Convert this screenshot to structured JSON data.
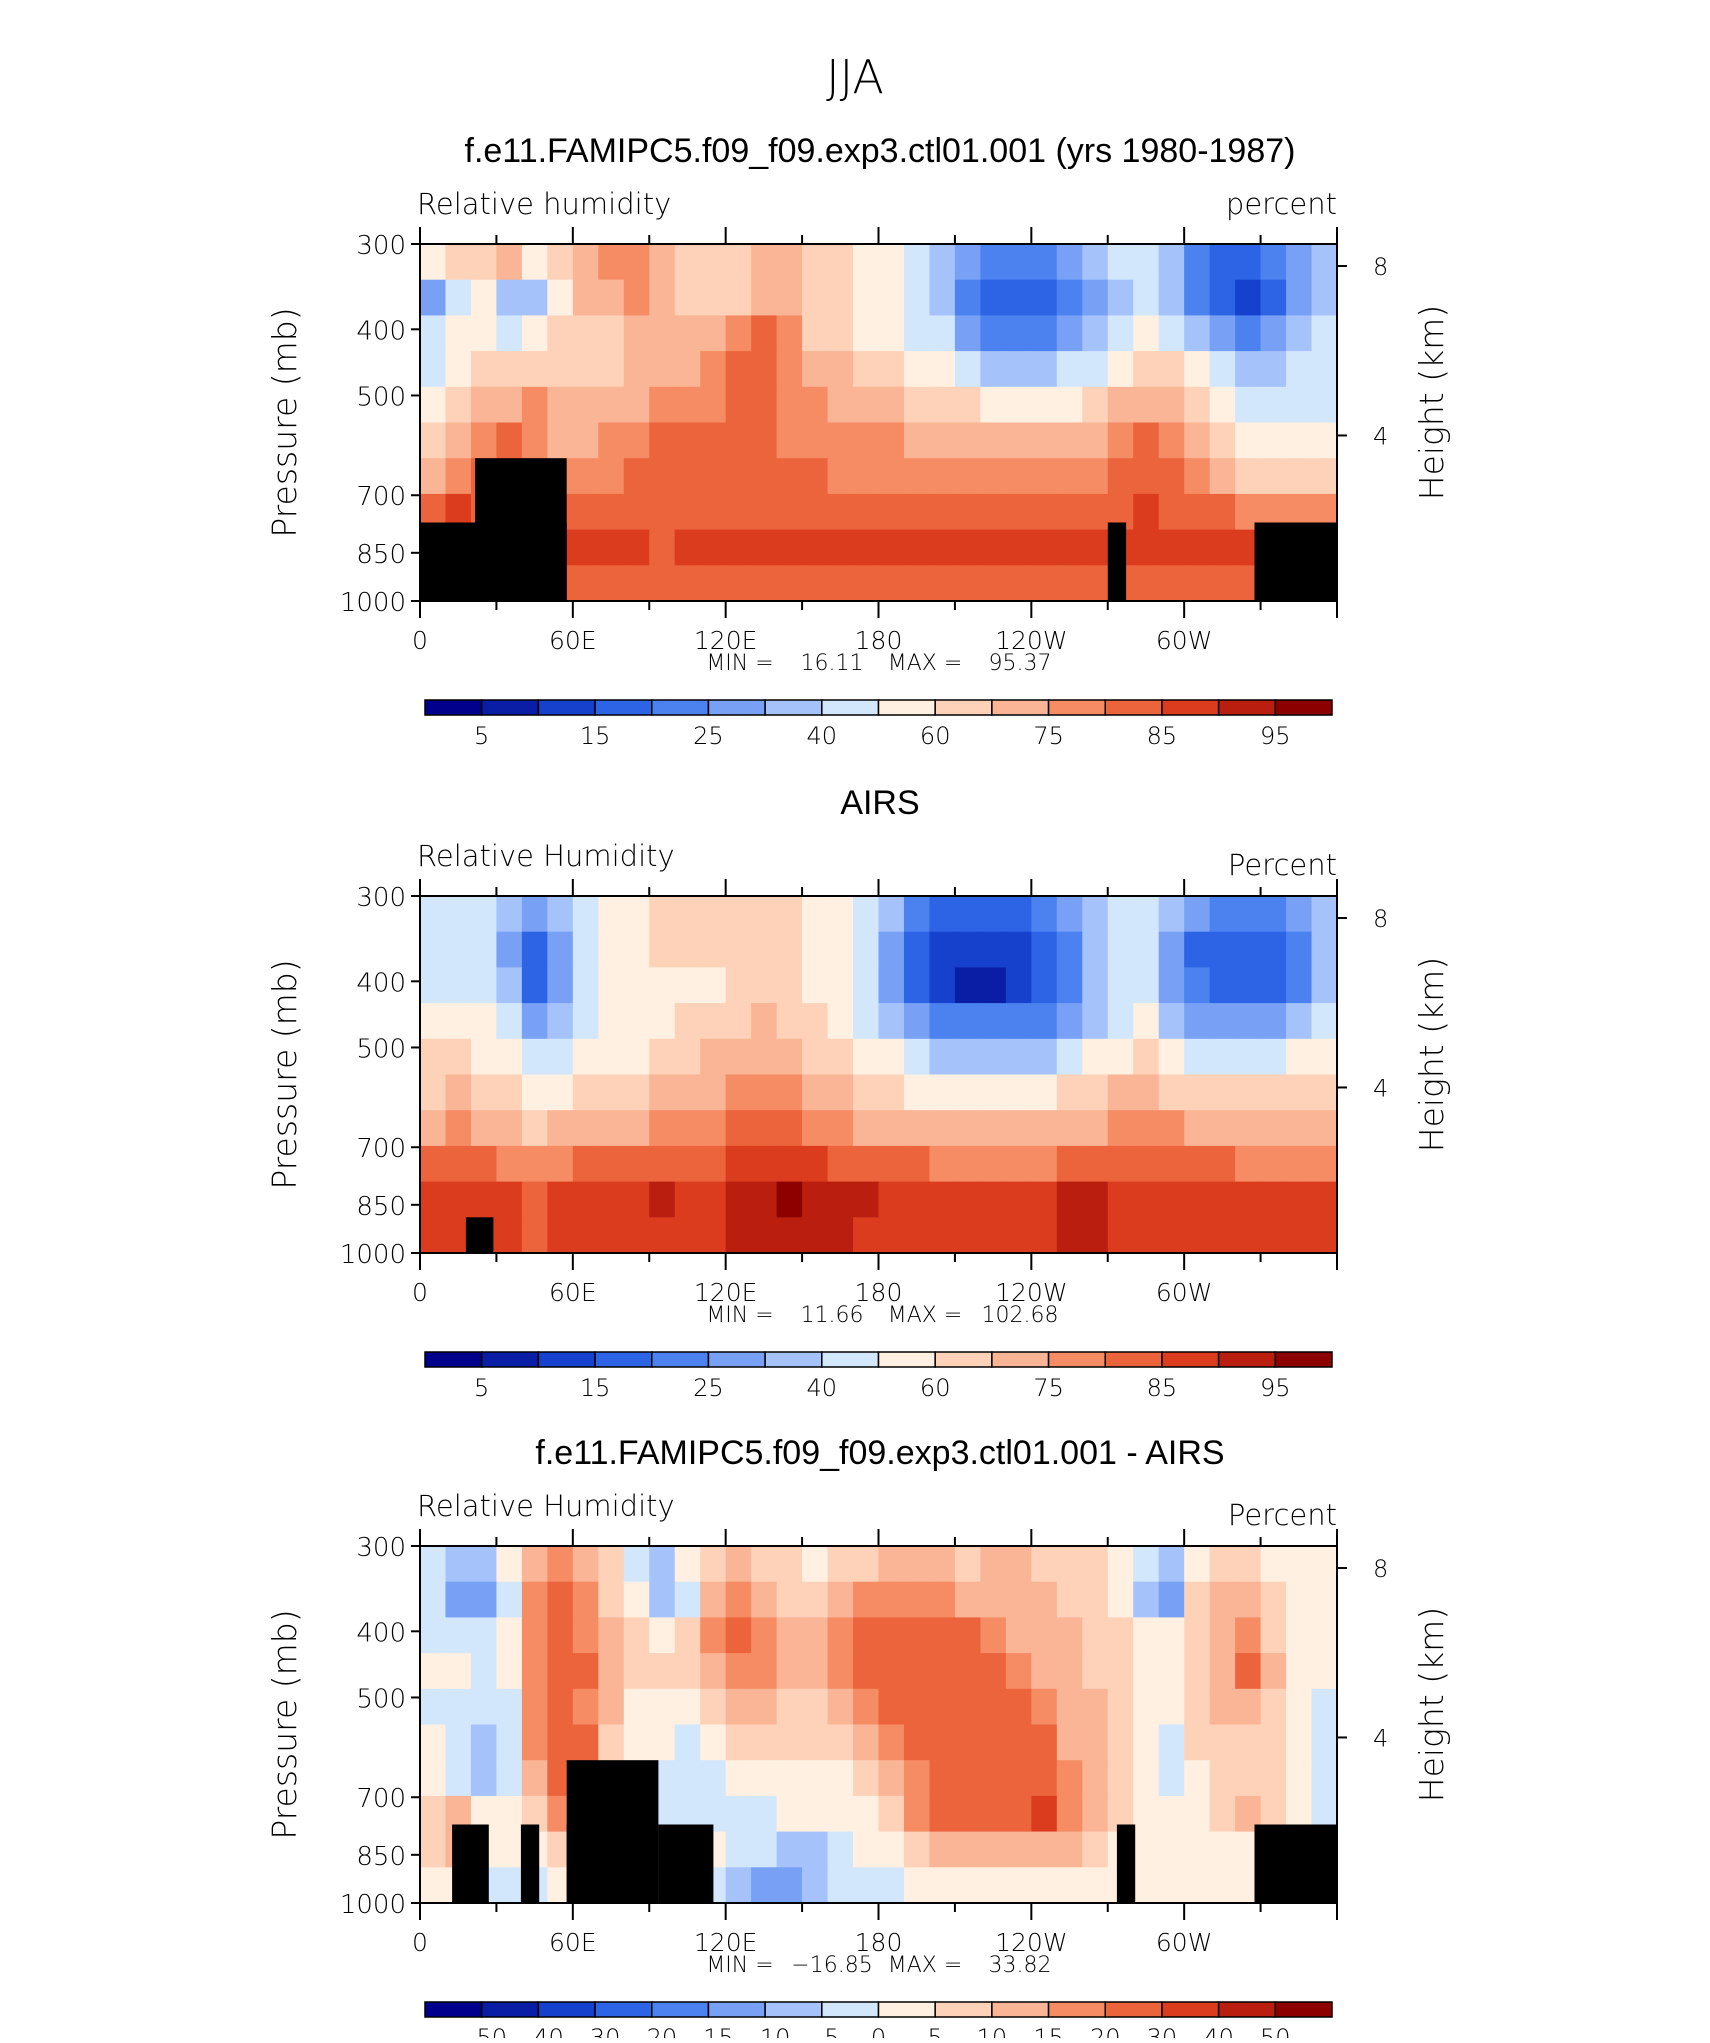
{
  "figure": {
    "suptitle": "JJA"
  },
  "chart_data": [
    {
      "type": "heatmap",
      "title": "f.e11.FAMIPC5.f09_f09.exp3.ctl01.001 (yrs 1980-1987)",
      "left_label": "Relative humidity",
      "right_label": "percent",
      "ylabel": "Pressure (mb)",
      "ylabel_right": "Height (km)",
      "y_ticks": [
        "300",
        "400",
        "500",
        "700",
        "850",
        "1000"
      ],
      "y_right_ticks": [
        "8",
        "4"
      ],
      "x_ticks": [
        "0",
        "60E",
        "120E",
        "180",
        "120W",
        "60W"
      ],
      "stats": {
        "min_label": "MIN =",
        "min": "16.11",
        "max_label": "MAX =",
        "max": "95.37"
      },
      "colorbar_labels": [
        "5",
        "15",
        "25",
        "40",
        "60",
        "75",
        "85",
        "95"
      ],
      "colors": [
        "#00008c",
        "#0a1ea5",
        "#1641cd",
        "#2d64e6",
        "#4b82f0",
        "#78a0f5",
        "#a5c3fa",
        "#d2e6fc",
        "#fff0e1",
        "#fdd2b9",
        "#fab496",
        "#f58c64",
        "#eb643c",
        "#dc3c1e",
        "#b91e0f",
        "#8c0000"
      ],
      "field": [
        [
          8,
          9,
          9,
          10,
          8,
          9,
          10,
          11,
          11,
          10,
          9,
          9,
          9,
          10,
          10,
          9,
          9,
          8,
          8,
          7,
          6,
          5,
          4,
          4,
          4,
          5,
          6,
          7,
          7,
          6,
          4,
          3,
          3,
          4,
          5,
          6
        ],
        [
          5,
          7,
          8,
          6,
          6,
          8,
          10,
          10,
          11,
          10,
          9,
          9,
          9,
          10,
          10,
          9,
          9,
          8,
          8,
          7,
          6,
          4,
          3,
          3,
          3,
          4,
          5,
          6,
          7,
          6,
          4,
          3,
          2,
          3,
          5,
          6
        ],
        [
          7,
          8,
          8,
          7,
          8,
          9,
          9,
          9,
          10,
          10,
          10,
          10,
          11,
          12,
          11,
          9,
          9,
          8,
          8,
          7,
          7,
          5,
          4,
          4,
          4,
          5,
          6,
          7,
          8,
          7,
          6,
          5,
          4,
          5,
          6,
          7
        ],
        [
          7,
          8,
          9,
          9,
          9,
          9,
          9,
          9,
          10,
          10,
          10,
          11,
          12,
          12,
          11,
          10,
          10,
          9,
          9,
          8,
          8,
          7,
          6,
          6,
          6,
          7,
          7,
          8,
          9,
          9,
          8,
          7,
          6,
          6,
          7,
          7
        ],
        [
          8,
          9,
          10,
          10,
          11,
          10,
          10,
          10,
          10,
          11,
          11,
          11,
          12,
          12,
          11,
          11,
          10,
          10,
          10,
          9,
          9,
          9,
          8,
          8,
          8,
          8,
          9,
          10,
          10,
          10,
          9,
          8,
          7,
          7,
          7,
          7
        ],
        [
          9,
          10,
          11,
          12,
          11,
          10,
          10,
          11,
          11,
          12,
          12,
          12,
          12,
          12,
          11,
          11,
          11,
          11,
          11,
          10,
          10,
          10,
          10,
          10,
          10,
          10,
          10,
          11,
          12,
          11,
          10,
          9,
          8,
          8,
          8,
          8
        ],
        [
          10,
          11,
          12,
          13,
          12,
          11,
          11,
          11,
          12,
          12,
          12,
          12,
          12,
          12,
          12,
          12,
          11,
          11,
          11,
          11,
          11,
          11,
          11,
          11,
          11,
          11,
          11,
          12,
          12,
          12,
          11,
          10,
          9,
          9,
          9,
          9
        ],
        [
          12,
          13,
          12,
          13,
          12,
          12,
          12,
          12,
          12,
          12,
          12,
          12,
          12,
          12,
          12,
          12,
          12,
          12,
          12,
          12,
          12,
          12,
          12,
          12,
          12,
          12,
          12,
          12,
          13,
          12,
          12,
          12,
          11,
          11,
          11,
          11
        ],
        [
          13,
          13,
          13,
          13,
          13,
          13,
          13,
          13,
          13,
          12,
          13,
          13,
          13,
          13,
          13,
          13,
          13,
          13,
          13,
          13,
          13,
          13,
          13,
          13,
          13,
          13,
          13,
          13,
          13,
          13,
          13,
          13,
          13,
          13,
          13,
          13
        ],
        [
          12,
          12,
          12,
          12,
          12,
          12,
          12,
          12,
          12,
          12,
          12,
          12,
          12,
          12,
          12,
          12,
          12,
          12,
          12,
          12,
          12,
          12,
          12,
          12,
          12,
          12,
          12,
          12,
          12,
          12,
          12,
          12,
          12,
          12,
          12,
          12
        ]
      ],
      "terrain": [
        [
          0,
          0.6,
          0.78
        ],
        [
          0.6,
          0.4,
          0.78
        ],
        [
          0.6,
          1,
          0.6
        ],
        [
          1,
          0.6,
          0.78
        ],
        [
          1.1,
          0.35,
          0.78
        ],
        [
          7.5,
          0.2,
          0.78
        ],
        [
          9.1,
          0.9,
          0.78
        ]
      ]
    },
    {
      "type": "heatmap",
      "title": "AIRS",
      "left_label": "Relative Humidity",
      "right_label": "Percent",
      "ylabel": "Pressure (mb)",
      "ylabel_right": "Height (km)",
      "y_ticks": [
        "300",
        "400",
        "500",
        "700",
        "850",
        "1000"
      ],
      "y_right_ticks": [
        "8",
        "4"
      ],
      "x_ticks": [
        "0",
        "60E",
        "120E",
        "180",
        "120W",
        "60W"
      ],
      "stats": {
        "min_label": "MIN =",
        "min": "11.66",
        "max_label": "MAX =",
        "max": "102.68"
      },
      "colorbar_labels": [
        "5",
        "15",
        "25",
        "40",
        "60",
        "75",
        "85",
        "95"
      ],
      "colors": [
        "#00008c",
        "#0a1ea5",
        "#1641cd",
        "#2d64e6",
        "#4b82f0",
        "#78a0f5",
        "#a5c3fa",
        "#d2e6fc",
        "#fff0e1",
        "#fdd2b9",
        "#fab496",
        "#f58c64",
        "#eb643c",
        "#dc3c1e",
        "#b91e0f",
        "#8c0000"
      ],
      "field": [
        [
          7,
          7,
          7,
          6,
          5,
          6,
          7,
          8,
          8,
          9,
          9,
          9,
          9,
          9,
          9,
          8,
          8,
          7,
          6,
          4,
          3,
          3,
          3,
          3,
          4,
          5,
          6,
          7,
          7,
          6,
          5,
          4,
          4,
          4,
          5,
          6
        ],
        [
          7,
          7,
          7,
          5,
          3,
          5,
          7,
          8,
          8,
          9,
          9,
          9,
          9,
          9,
          9,
          8,
          8,
          7,
          5,
          3,
          2,
          2,
          2,
          2,
          3,
          4,
          6,
          7,
          7,
          5,
          3,
          3,
          3,
          3,
          4,
          6
        ],
        [
          7,
          7,
          7,
          6,
          3,
          5,
          7,
          8,
          8,
          8,
          8,
          8,
          9,
          9,
          9,
          8,
          8,
          7,
          5,
          3,
          2,
          1,
          1,
          2,
          3,
          4,
          6,
          7,
          7,
          5,
          4,
          3,
          3,
          3,
          4,
          6
        ],
        [
          8,
          8,
          8,
          7,
          5,
          6,
          7,
          8,
          8,
          8,
          9,
          9,
          9,
          10,
          9,
          9,
          8,
          7,
          6,
          5,
          4,
          4,
          4,
          4,
          4,
          5,
          6,
          7,
          8,
          6,
          5,
          5,
          5,
          5,
          6,
          7
        ],
        [
          9,
          9,
          8,
          8,
          7,
          7,
          8,
          8,
          8,
          9,
          9,
          10,
          10,
          10,
          10,
          9,
          9,
          8,
          8,
          7,
          6,
          6,
          6,
          6,
          6,
          7,
          8,
          8,
          9,
          8,
          7,
          7,
          7,
          7,
          8,
          8
        ],
        [
          9,
          10,
          9,
          9,
          8,
          8,
          9,
          9,
          9,
          10,
          10,
          10,
          11,
          11,
          11,
          10,
          10,
          9,
          9,
          8,
          8,
          8,
          8,
          8,
          8,
          9,
          9,
          10,
          10,
          9,
          9,
          9,
          9,
          9,
          9,
          9
        ],
        [
          10,
          11,
          10,
          10,
          9,
          10,
          10,
          10,
          10,
          11,
          11,
          11,
          12,
          12,
          12,
          11,
          11,
          10,
          10,
          10,
          10,
          10,
          10,
          10,
          10,
          10,
          10,
          11,
          11,
          11,
          10,
          10,
          10,
          10,
          10,
          10
        ],
        [
          12,
          12,
          12,
          11,
          11,
          11,
          12,
          12,
          12,
          12,
          12,
          12,
          13,
          13,
          13,
          13,
          12,
          12,
          12,
          12,
          11,
          11,
          11,
          11,
          11,
          12,
          12,
          12,
          12,
          12,
          12,
          12,
          11,
          11,
          11,
          11
        ],
        [
          13,
          13,
          13,
          13,
          12,
          13,
          13,
          13,
          13,
          14,
          13,
          13,
          14,
          14,
          15,
          14,
          14,
          14,
          13,
          13,
          13,
          13,
          13,
          13,
          13,
          14,
          14,
          13,
          13,
          13,
          13,
          13,
          13,
          13,
          13,
          13
        ],
        [
          13,
          13,
          13,
          13,
          12,
          13,
          13,
          13,
          13,
          13,
          13,
          13,
          14,
          14,
          14,
          14,
          14,
          13,
          13,
          13,
          13,
          13,
          13,
          13,
          13,
          14,
          14,
          13,
          13,
          13,
          13,
          13,
          13,
          13,
          13,
          13
        ]
      ],
      "terrain": [
        [
          0.5,
          0.3,
          0.9
        ]
      ]
    },
    {
      "type": "heatmap",
      "title": "f.e11.FAMIPC5.f09_f09.exp3.ctl01.001 - AIRS",
      "left_label": "Relative Humidity",
      "right_label": "Percent",
      "ylabel": "Pressure (mb)",
      "ylabel_right": "Height (km)",
      "y_ticks": [
        "300",
        "400",
        "500",
        "700",
        "850",
        "1000"
      ],
      "y_right_ticks": [
        "8",
        "4"
      ],
      "x_ticks": [
        "0",
        "60E",
        "120E",
        "180",
        "120W",
        "60W"
      ],
      "stats": {
        "min_label": "MIN =",
        "min": "−16.85",
        "max_label": "MAX =",
        "max": "33.82"
      },
      "colorbar_labels": [
        "−50",
        "−40",
        "−30",
        "−20",
        "−15",
        "−10",
        "−5",
        "0",
        "5",
        "10",
        "15",
        "20",
        "30",
        "40",
        "50"
      ],
      "colors": [
        "#00008c",
        "#0a1ea5",
        "#1641cd",
        "#2d64e6",
        "#4b82f0",
        "#78a0f5",
        "#a5c3fa",
        "#d2e6fc",
        "#fff0e1",
        "#fdd2b9",
        "#fab496",
        "#f58c64",
        "#eb643c",
        "#dc3c1e",
        "#b91e0f",
        "#8c0000"
      ],
      "field": [
        [
          7,
          6,
          6,
          8,
          10,
          11,
          10,
          9,
          7,
          6,
          8,
          9,
          10,
          9,
          9,
          8,
          9,
          9,
          10,
          10,
          10,
          9,
          10,
          10,
          9,
          9,
          9,
          8,
          7,
          6,
          8,
          9,
          9,
          8,
          8,
          8
        ],
        [
          7,
          5,
          5,
          7,
          11,
          12,
          11,
          9,
          8,
          6,
          7,
          10,
          11,
          10,
          9,
          9,
          10,
          11,
          11,
          11,
          11,
          10,
          10,
          10,
          10,
          9,
          9,
          8,
          6,
          5,
          9,
          10,
          10,
          9,
          8,
          8
        ],
        [
          7,
          7,
          7,
          8,
          11,
          12,
          11,
          10,
          9,
          8,
          9,
          11,
          12,
          11,
          10,
          10,
          11,
          12,
          12,
          12,
          12,
          12,
          11,
          10,
          10,
          10,
          9,
          9,
          8,
          8,
          9,
          10,
          11,
          9,
          8,
          8
        ],
        [
          8,
          8,
          7,
          8,
          11,
          12,
          12,
          10,
          9,
          9,
          9,
          10,
          11,
          11,
          10,
          10,
          11,
          12,
          12,
          12,
          12,
          12,
          12,
          11,
          10,
          10,
          9,
          9,
          8,
          8,
          9,
          10,
          12,
          10,
          8,
          8
        ],
        [
          7,
          7,
          7,
          7,
          11,
          12,
          11,
          10,
          8,
          8,
          8,
          9,
          10,
          10,
          9,
          9,
          10,
          11,
          12,
          12,
          12,
          12,
          12,
          12,
          11,
          10,
          10,
          9,
          8,
          8,
          9,
          10,
          10,
          9,
          8,
          7
        ],
        [
          8,
          7,
          6,
          7,
          11,
          12,
          12,
          9,
          8,
          8,
          7,
          8,
          9,
          9,
          9,
          9,
          9,
          10,
          11,
          12,
          12,
          12,
          12,
          12,
          12,
          10,
          10,
          9,
          8,
          7,
          9,
          9,
          9,
          9,
          8,
          7
        ],
        [
          8,
          7,
          6,
          7,
          10,
          12,
          12,
          9,
          8,
          7,
          7,
          7,
          8,
          8,
          8,
          8,
          8,
          9,
          10,
          11,
          12,
          12,
          12,
          12,
          12,
          11,
          10,
          9,
          8,
          7,
          8,
          9,
          9,
          9,
          8,
          7
        ],
        [
          9,
          10,
          8,
          8,
          9,
          11,
          12,
          9,
          8,
          7,
          7,
          7,
          7,
          7,
          8,
          8,
          8,
          8,
          9,
          11,
          12,
          12,
          12,
          12,
          13,
          11,
          10,
          9,
          8,
          8,
          8,
          9,
          10,
          9,
          8,
          7
        ],
        [
          9,
          10,
          8,
          8,
          8,
          9,
          10,
          8,
          8,
          8,
          8,
          8,
          7,
          7,
          6,
          6,
          7,
          8,
          8,
          9,
          10,
          10,
          10,
          10,
          10,
          10,
          9,
          8,
          8,
          8,
          8,
          8,
          8,
          8,
          8,
          8
        ],
        [
          8,
          8,
          7,
          7,
          7,
          8,
          8,
          8,
          7,
          7,
          8,
          7,
          6,
          5,
          5,
          6,
          7,
          7,
          7,
          8,
          8,
          8,
          8,
          8,
          8,
          8,
          8,
          8,
          8,
          8,
          8,
          8,
          8,
          8,
          8,
          8
        ]
      ],
      "terrain": [
        [
          0.35,
          0.4,
          0.78
        ],
        [
          1.1,
          0.2,
          0.78
        ],
        [
          1.6,
          0.6,
          0.78
        ],
        [
          1.6,
          1,
          0.6
        ],
        [
          2.6,
          0.6,
          0.78
        ],
        [
          2.6,
          0.35,
          0.78
        ],
        [
          7.6,
          0.2,
          0.78
        ],
        [
          9.1,
          0.9,
          0.78
        ]
      ]
    }
  ]
}
